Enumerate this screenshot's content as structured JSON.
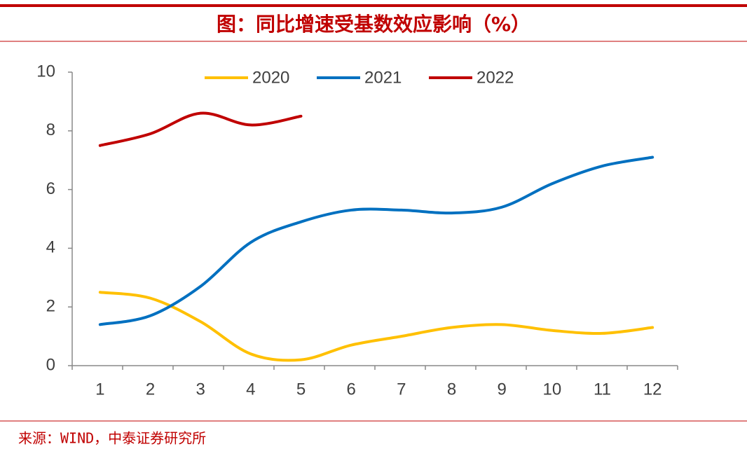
{
  "chart_data": {
    "type": "line",
    "title": "图：同比增速受基数效应影响（%）",
    "source": "来源：WIND，中泰证券研究所",
    "categories": [
      "1",
      "2",
      "3",
      "4",
      "5",
      "6",
      "7",
      "8",
      "9",
      "10",
      "11",
      "12"
    ],
    "series": [
      {
        "name": "2020",
        "color": "#ffc000",
        "values": [
          2.5,
          2.3,
          1.5,
          0.4,
          0.2,
          0.7,
          1.0,
          1.3,
          1.4,
          1.2,
          1.1,
          1.3
        ]
      },
      {
        "name": "2021",
        "color": "#0070c0",
        "values": [
          1.4,
          1.7,
          2.7,
          4.2,
          4.9,
          5.3,
          5.3,
          5.2,
          5.4,
          6.2,
          6.8,
          7.1
        ]
      },
      {
        "name": "2022",
        "color": "#c00000",
        "values": [
          7.5,
          7.9,
          8.6,
          8.2,
          8.5,
          null,
          null,
          null,
          null,
          null,
          null,
          null
        ]
      }
    ],
    "ylim": [
      0,
      10
    ],
    "yticks": [
      0,
      2,
      4,
      6,
      8,
      10
    ],
    "grid": false,
    "smooth": true,
    "legend": "top"
  }
}
